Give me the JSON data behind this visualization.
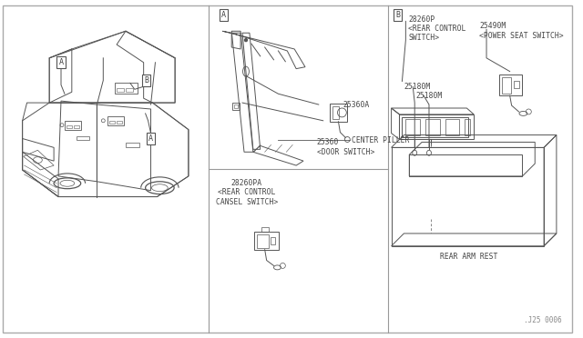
{
  "bg_color": "#ffffff",
  "line_color": "#555555",
  "text_color": "#444444",
  "fig_width": 6.4,
  "fig_height": 3.72,
  "dpi": 100,
  "watermark": "J25 0006",
  "labels": {
    "center_piller": "CENTER PILLER",
    "part_25360a": "25360A",
    "part_25360": "25360\n<DOOR SWITCH>",
    "part_28260pa": "28260PA\n<REAR CONTROL\nCANSEL SWITCH>",
    "part_28260p": "28260P\n<REAR CONTROL\nSWITCH>",
    "part_25490m": "25490M\n<POWER SEAT SWITCH>",
    "part_25180m_1": "25180M",
    "part_25180m_2": "25180M",
    "rear_arm_rest": "REAR ARM REST",
    "label_a": "A",
    "label_b": "B",
    "ip5_0006": ".J25 0006"
  }
}
